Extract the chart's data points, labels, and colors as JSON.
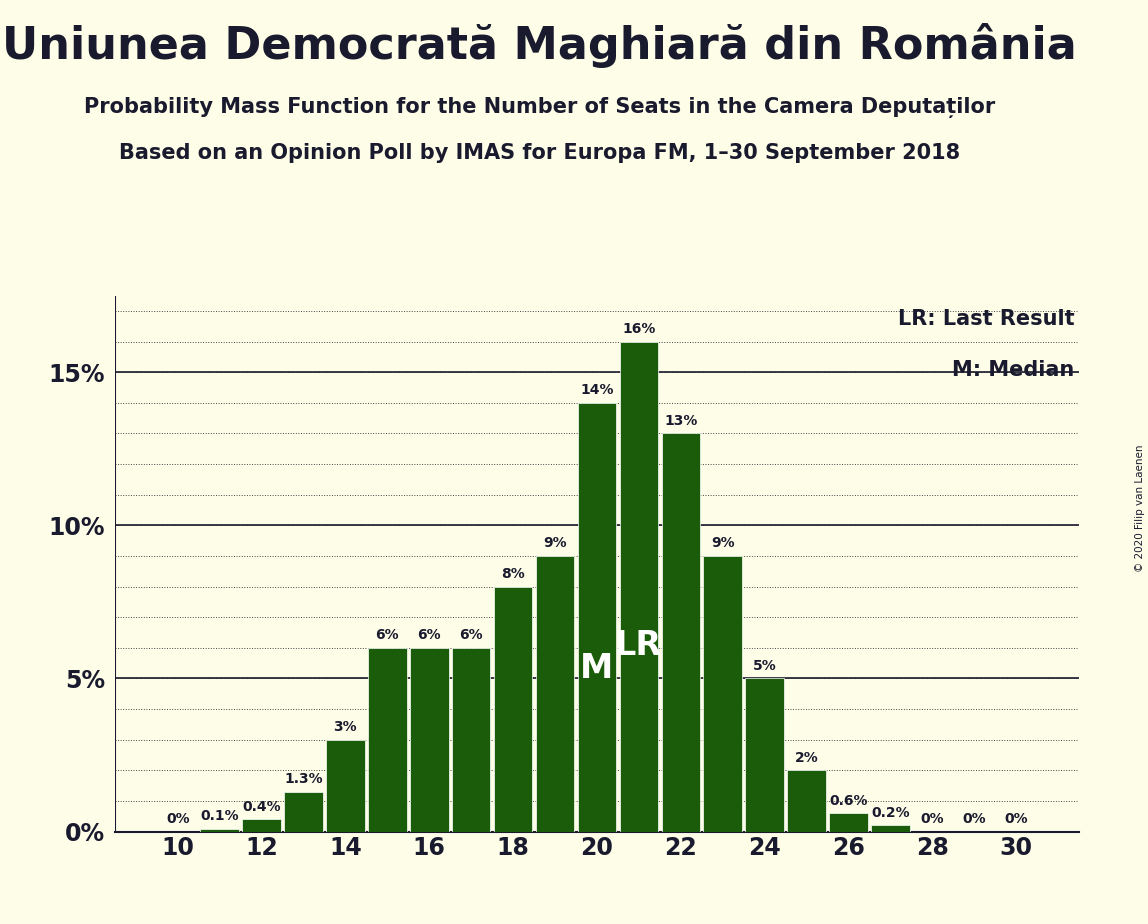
{
  "title": "Uniunea Democrată Maghiară din România",
  "subtitle1": "Probability Mass Function for the Number of Seats in the Camera Deputaților",
  "subtitle2": "Based on an Opinion Poll by IMAS for Europa FM, 1–30 September 2018",
  "copyright": "© 2020 Filip van Laenen",
  "seats": [
    10,
    11,
    12,
    13,
    14,
    15,
    16,
    17,
    18,
    19,
    20,
    21,
    22,
    23,
    24,
    25,
    26,
    27,
    28,
    29,
    30
  ],
  "probabilities": [
    0.0,
    0.1,
    0.4,
    1.3,
    3.0,
    6.0,
    6.0,
    6.0,
    8.0,
    9.0,
    14.0,
    16.0,
    13.0,
    9.0,
    5.0,
    2.0,
    0.6,
    0.2,
    0.0,
    0.0,
    0.0
  ],
  "bar_color": "#1a5c0a",
  "background_color": "#fdfde8",
  "text_color": "#1a1a2e",
  "median": 20,
  "last_result": 21,
  "yticks": [
    0,
    5,
    10,
    15
  ],
  "ylim": [
    0,
    17.5
  ],
  "xlabel_seats": [
    10,
    12,
    14,
    16,
    18,
    20,
    22,
    24,
    26,
    28,
    30
  ],
  "legend_lr": "LR: Last Result",
  "legend_m": "M: Median",
  "bar_width": 0.92,
  "label_fontsize": 10,
  "tick_fontsize": 17,
  "title_fontsize": 32,
  "subtitle_fontsize": 15,
  "legend_fontsize": 15,
  "inside_label_fontsize": 24
}
